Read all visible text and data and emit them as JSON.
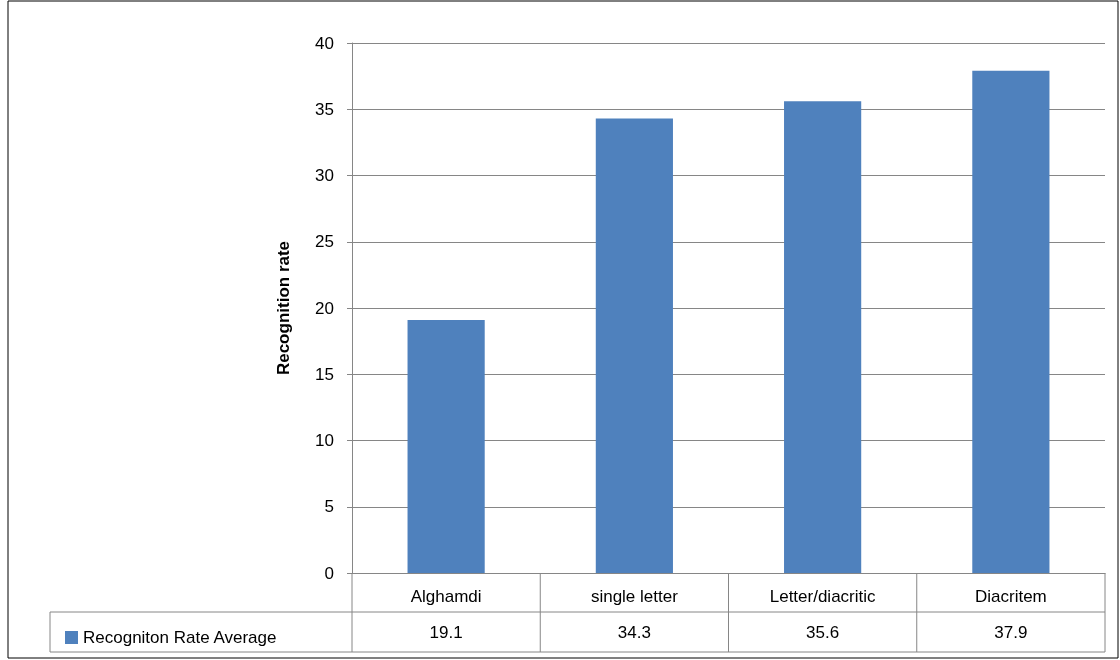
{
  "chart_data": {
    "type": "bar",
    "ylabel": "Recognition rate",
    "categories": [
      "Alghamdi",
      "single letter",
      "Letter/diacritic",
      "Diacritem"
    ],
    "series": [
      {
        "name": "Recogniton Rate Average",
        "color": "#4f81bd",
        "values": [
          19.1,
          34.3,
          35.6,
          37.9
        ]
      }
    ],
    "ylim": [
      0,
      40
    ],
    "yticks": [
      0,
      5,
      10,
      15,
      20,
      25,
      30,
      35,
      40
    ],
    "grid": "y",
    "legend": "bottom left",
    "data_labels": true
  }
}
